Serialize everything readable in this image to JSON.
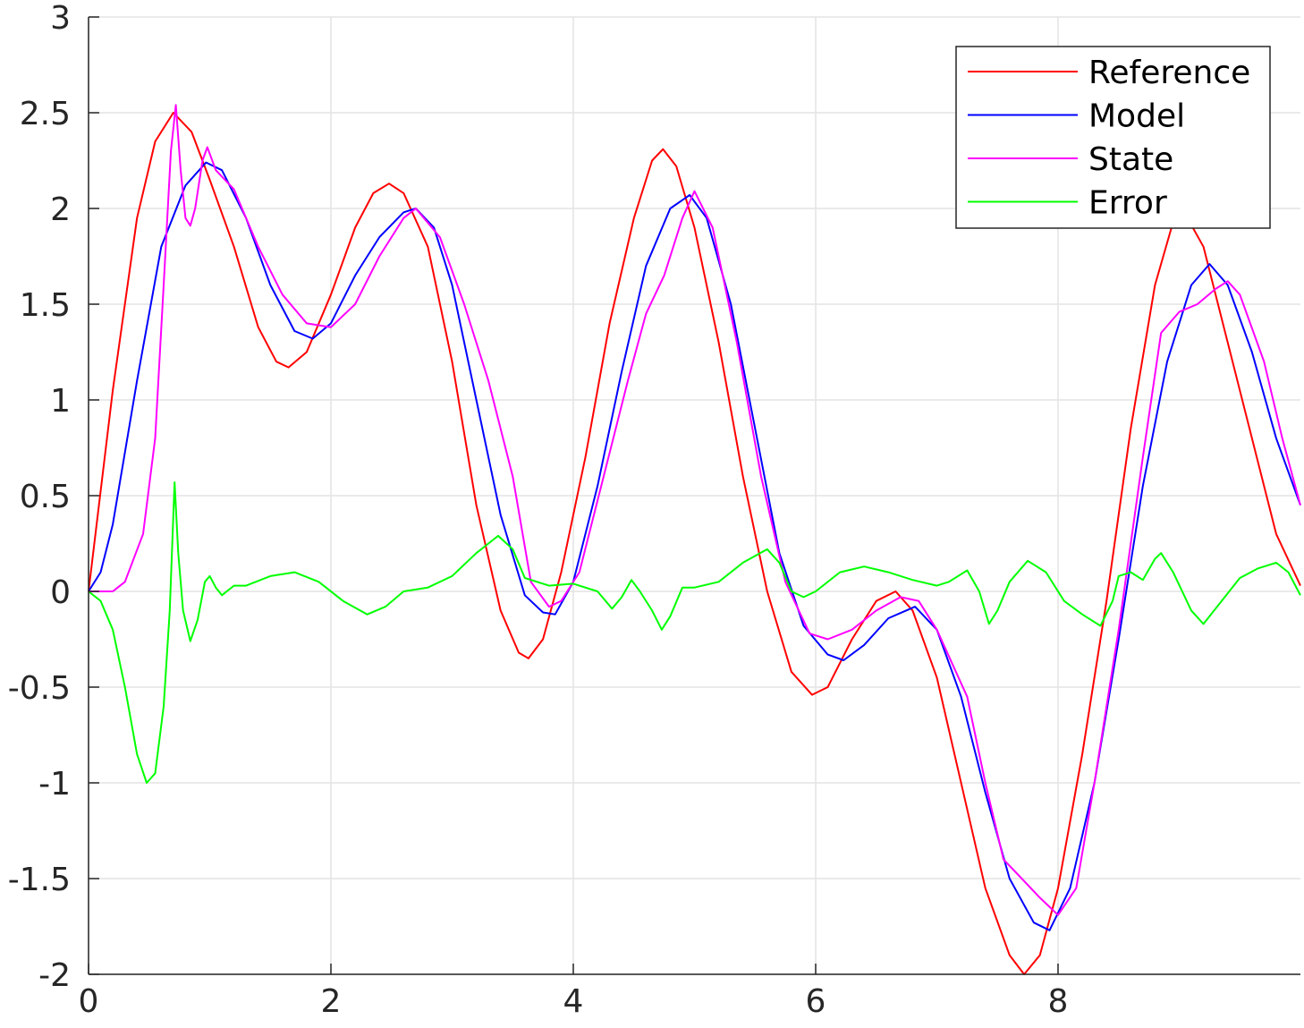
{
  "chart_data": {
    "type": "line",
    "title": "",
    "xlabel": "",
    "ylabel": "",
    "xlim": [
      0,
      10
    ],
    "ylim": [
      -2,
      3
    ],
    "xticks": [
      0,
      2,
      4,
      6,
      8
    ],
    "yticks": [
      -2,
      -1.5,
      -1,
      -0.5,
      0,
      0.5,
      1,
      1.5,
      2,
      2.5,
      3
    ],
    "xtick_labels": [
      "0",
      "2",
      "4",
      "6",
      "8"
    ],
    "ytick_labels": [
      "-2",
      "-1.5",
      "-1",
      "-0.5",
      "0",
      "0.5",
      "1",
      "1.5",
      "2",
      "2.5",
      "3"
    ],
    "grid": true,
    "legend_position": "top-right",
    "series": [
      {
        "name": "Reference",
        "color": "#ff0000",
        "points": [
          [
            0,
            0
          ],
          [
            0.2,
            1.05
          ],
          [
            0.4,
            1.95
          ],
          [
            0.55,
            2.35
          ],
          [
            0.7,
            2.5
          ],
          [
            0.85,
            2.4
          ],
          [
            1.0,
            2.15
          ],
          [
            1.2,
            1.8
          ],
          [
            1.4,
            1.38
          ],
          [
            1.55,
            1.2
          ],
          [
            1.65,
            1.17
          ],
          [
            1.8,
            1.25
          ],
          [
            2.0,
            1.55
          ],
          [
            2.2,
            1.9
          ],
          [
            2.35,
            2.08
          ],
          [
            2.48,
            2.13
          ],
          [
            2.6,
            2.08
          ],
          [
            2.8,
            1.8
          ],
          [
            3.0,
            1.2
          ],
          [
            3.2,
            0.45
          ],
          [
            3.4,
            -0.1
          ],
          [
            3.55,
            -0.32
          ],
          [
            3.63,
            -0.35
          ],
          [
            3.75,
            -0.25
          ],
          [
            3.9,
            0.1
          ],
          [
            4.1,
            0.7
          ],
          [
            4.3,
            1.4
          ],
          [
            4.5,
            1.95
          ],
          [
            4.65,
            2.25
          ],
          [
            4.74,
            2.31
          ],
          [
            4.85,
            2.22
          ],
          [
            5.0,
            1.9
          ],
          [
            5.2,
            1.3
          ],
          [
            5.4,
            0.6
          ],
          [
            5.6,
            0.0
          ],
          [
            5.8,
            -0.42
          ],
          [
            5.97,
            -0.54
          ],
          [
            6.1,
            -0.5
          ],
          [
            6.3,
            -0.25
          ],
          [
            6.5,
            -0.05
          ],
          [
            6.66,
            0.0
          ],
          [
            6.8,
            -0.1
          ],
          [
            7.0,
            -0.45
          ],
          [
            7.2,
            -1.0
          ],
          [
            7.4,
            -1.55
          ],
          [
            7.6,
            -1.9
          ],
          [
            7.72,
            -2.0
          ],
          [
            7.85,
            -1.9
          ],
          [
            8.0,
            -1.55
          ],
          [
            8.2,
            -0.85
          ],
          [
            8.4,
            -0.05
          ],
          [
            8.6,
            0.85
          ],
          [
            8.8,
            1.6
          ],
          [
            8.95,
            1.93
          ],
          [
            9.05,
            1.97
          ],
          [
            9.2,
            1.8
          ],
          [
            9.4,
            1.3
          ],
          [
            9.6,
            0.8
          ],
          [
            9.8,
            0.3
          ],
          [
            10.0,
            0.03
          ]
        ]
      },
      {
        "name": "Model",
        "color": "#0000ff",
        "points": [
          [
            0,
            0
          ],
          [
            0.1,
            0.1
          ],
          [
            0.2,
            0.35
          ],
          [
            0.4,
            1.1
          ],
          [
            0.6,
            1.8
          ],
          [
            0.8,
            2.12
          ],
          [
            0.97,
            2.24
          ],
          [
            1.1,
            2.2
          ],
          [
            1.3,
            1.95
          ],
          [
            1.5,
            1.6
          ],
          [
            1.7,
            1.36
          ],
          [
            1.85,
            1.32
          ],
          [
            2.0,
            1.4
          ],
          [
            2.2,
            1.65
          ],
          [
            2.4,
            1.85
          ],
          [
            2.6,
            1.98
          ],
          [
            2.7,
            2.0
          ],
          [
            2.85,
            1.9
          ],
          [
            3.0,
            1.6
          ],
          [
            3.2,
            1.0
          ],
          [
            3.4,
            0.4
          ],
          [
            3.6,
            -0.02
          ],
          [
            3.75,
            -0.11
          ],
          [
            3.85,
            -0.12
          ],
          [
            4.0,
            0.05
          ],
          [
            4.2,
            0.55
          ],
          [
            4.4,
            1.15
          ],
          [
            4.6,
            1.7
          ],
          [
            4.8,
            2.0
          ],
          [
            4.96,
            2.07
          ],
          [
            5.1,
            1.95
          ],
          [
            5.3,
            1.5
          ],
          [
            5.5,
            0.85
          ],
          [
            5.7,
            0.2
          ],
          [
            5.9,
            -0.18
          ],
          [
            6.1,
            -0.33
          ],
          [
            6.23,
            -0.36
          ],
          [
            6.4,
            -0.28
          ],
          [
            6.6,
            -0.14
          ],
          [
            6.82,
            -0.08
          ],
          [
            7.0,
            -0.2
          ],
          [
            7.2,
            -0.55
          ],
          [
            7.4,
            -1.05
          ],
          [
            7.6,
            -1.5
          ],
          [
            7.8,
            -1.73
          ],
          [
            7.93,
            -1.77
          ],
          [
            8.1,
            -1.55
          ],
          [
            8.3,
            -1.0
          ],
          [
            8.5,
            -0.25
          ],
          [
            8.7,
            0.55
          ],
          [
            8.9,
            1.2
          ],
          [
            9.1,
            1.6
          ],
          [
            9.25,
            1.71
          ],
          [
            9.4,
            1.6
          ],
          [
            9.6,
            1.25
          ],
          [
            9.8,
            0.8
          ],
          [
            10.0,
            0.45
          ]
        ]
      },
      {
        "name": "State",
        "color": "#ff00ff",
        "points": [
          [
            0,
            0
          ],
          [
            0.2,
            0.0
          ],
          [
            0.3,
            0.05
          ],
          [
            0.45,
            0.3
          ],
          [
            0.55,
            0.8
          ],
          [
            0.62,
            1.6
          ],
          [
            0.68,
            2.3
          ],
          [
            0.72,
            2.54
          ],
          [
            0.76,
            2.2
          ],
          [
            0.8,
            1.95
          ],
          [
            0.84,
            1.91
          ],
          [
            0.88,
            2.0
          ],
          [
            0.94,
            2.25
          ],
          [
            0.98,
            2.32
          ],
          [
            1.05,
            2.2
          ],
          [
            1.2,
            2.1
          ],
          [
            1.4,
            1.8
          ],
          [
            1.6,
            1.55
          ],
          [
            1.8,
            1.4
          ],
          [
            2.0,
            1.38
          ],
          [
            2.2,
            1.5
          ],
          [
            2.4,
            1.75
          ],
          [
            2.6,
            1.95
          ],
          [
            2.7,
            2.0
          ],
          [
            2.9,
            1.85
          ],
          [
            3.1,
            1.5
          ],
          [
            3.3,
            1.1
          ],
          [
            3.5,
            0.6
          ],
          [
            3.65,
            0.05
          ],
          [
            3.8,
            -0.08
          ],
          [
            3.9,
            -0.05
          ],
          [
            4.05,
            0.1
          ],
          [
            4.25,
            0.6
          ],
          [
            4.45,
            1.1
          ],
          [
            4.6,
            1.45
          ],
          [
            4.75,
            1.65
          ],
          [
            4.9,
            1.95
          ],
          [
            5.0,
            2.09
          ],
          [
            5.15,
            1.9
          ],
          [
            5.35,
            1.3
          ],
          [
            5.55,
            0.6
          ],
          [
            5.75,
            0.05
          ],
          [
            5.95,
            -0.22
          ],
          [
            6.1,
            -0.25
          ],
          [
            6.3,
            -0.2
          ],
          [
            6.5,
            -0.1
          ],
          [
            6.7,
            -0.03
          ],
          [
            6.85,
            -0.05
          ],
          [
            7.0,
            -0.2
          ],
          [
            7.25,
            -0.55
          ],
          [
            7.4,
            -1.0
          ],
          [
            7.55,
            -1.4
          ],
          [
            7.7,
            -1.5
          ],
          [
            7.85,
            -1.6
          ],
          [
            8.0,
            -1.69
          ],
          [
            8.15,
            -1.55
          ],
          [
            8.3,
            -1.0
          ],
          [
            8.5,
            -0.2
          ],
          [
            8.7,
            0.7
          ],
          [
            8.85,
            1.35
          ],
          [
            9.0,
            1.46
          ],
          [
            9.15,
            1.5
          ],
          [
            9.3,
            1.58
          ],
          [
            9.4,
            1.62
          ],
          [
            9.5,
            1.55
          ],
          [
            9.7,
            1.2
          ],
          [
            9.85,
            0.8
          ],
          [
            10.0,
            0.45
          ]
        ]
      },
      {
        "name": "Error",
        "color": "#00ff00",
        "points": [
          [
            0,
            0
          ],
          [
            0.1,
            -0.05
          ],
          [
            0.2,
            -0.2
          ],
          [
            0.3,
            -0.5
          ],
          [
            0.4,
            -0.85
          ],
          [
            0.48,
            -1.0
          ],
          [
            0.55,
            -0.95
          ],
          [
            0.62,
            -0.6
          ],
          [
            0.67,
            -0.1
          ],
          [
            0.71,
            0.57
          ],
          [
            0.74,
            0.2
          ],
          [
            0.78,
            -0.1
          ],
          [
            0.84,
            -0.26
          ],
          [
            0.9,
            -0.15
          ],
          [
            0.96,
            0.05
          ],
          [
            1.0,
            0.08
          ],
          [
            1.05,
            0.02
          ],
          [
            1.1,
            -0.02
          ],
          [
            1.2,
            0.03
          ],
          [
            1.3,
            0.03
          ],
          [
            1.5,
            0.08
          ],
          [
            1.7,
            0.1
          ],
          [
            1.9,
            0.05
          ],
          [
            2.1,
            -0.05
          ],
          [
            2.3,
            -0.12
          ],
          [
            2.45,
            -0.08
          ],
          [
            2.6,
            0.0
          ],
          [
            2.8,
            0.02
          ],
          [
            3.0,
            0.08
          ],
          [
            3.2,
            0.2
          ],
          [
            3.38,
            0.29
          ],
          [
            3.5,
            0.22
          ],
          [
            3.6,
            0.07
          ],
          [
            3.8,
            0.03
          ],
          [
            4.0,
            0.04
          ],
          [
            4.2,
            0.0
          ],
          [
            4.32,
            -0.09
          ],
          [
            4.4,
            -0.03
          ],
          [
            4.48,
            0.06
          ],
          [
            4.55,
            0.0
          ],
          [
            4.65,
            -0.1
          ],
          [
            4.73,
            -0.2
          ],
          [
            4.8,
            -0.13
          ],
          [
            4.9,
            0.02
          ],
          [
            5.0,
            0.02
          ],
          [
            5.2,
            0.05
          ],
          [
            5.4,
            0.15
          ],
          [
            5.6,
            0.22
          ],
          [
            5.7,
            0.15
          ],
          [
            5.8,
            0.0
          ],
          [
            5.9,
            -0.03
          ],
          [
            6.0,
            0.0
          ],
          [
            6.2,
            0.1
          ],
          [
            6.4,
            0.13
          ],
          [
            6.6,
            0.1
          ],
          [
            6.8,
            0.06
          ],
          [
            7.0,
            0.03
          ],
          [
            7.1,
            0.05
          ],
          [
            7.25,
            0.11
          ],
          [
            7.35,
            0.0
          ],
          [
            7.43,
            -0.17
          ],
          [
            7.5,
            -0.1
          ],
          [
            7.6,
            0.05
          ],
          [
            7.75,
            0.16
          ],
          [
            7.9,
            0.1
          ],
          [
            8.05,
            -0.05
          ],
          [
            8.2,
            -0.12
          ],
          [
            8.35,
            -0.18
          ],
          [
            8.45,
            -0.05
          ],
          [
            8.5,
            0.08
          ],
          [
            8.6,
            0.1
          ],
          [
            8.7,
            0.06
          ],
          [
            8.8,
            0.17
          ],
          [
            8.85,
            0.2
          ],
          [
            8.95,
            0.1
          ],
          [
            9.1,
            -0.1
          ],
          [
            9.2,
            -0.17
          ],
          [
            9.35,
            -0.05
          ],
          [
            9.5,
            0.07
          ],
          [
            9.65,
            0.12
          ],
          [
            9.8,
            0.15
          ],
          [
            9.9,
            0.1
          ],
          [
            10.0,
            -0.02
          ]
        ]
      }
    ]
  }
}
